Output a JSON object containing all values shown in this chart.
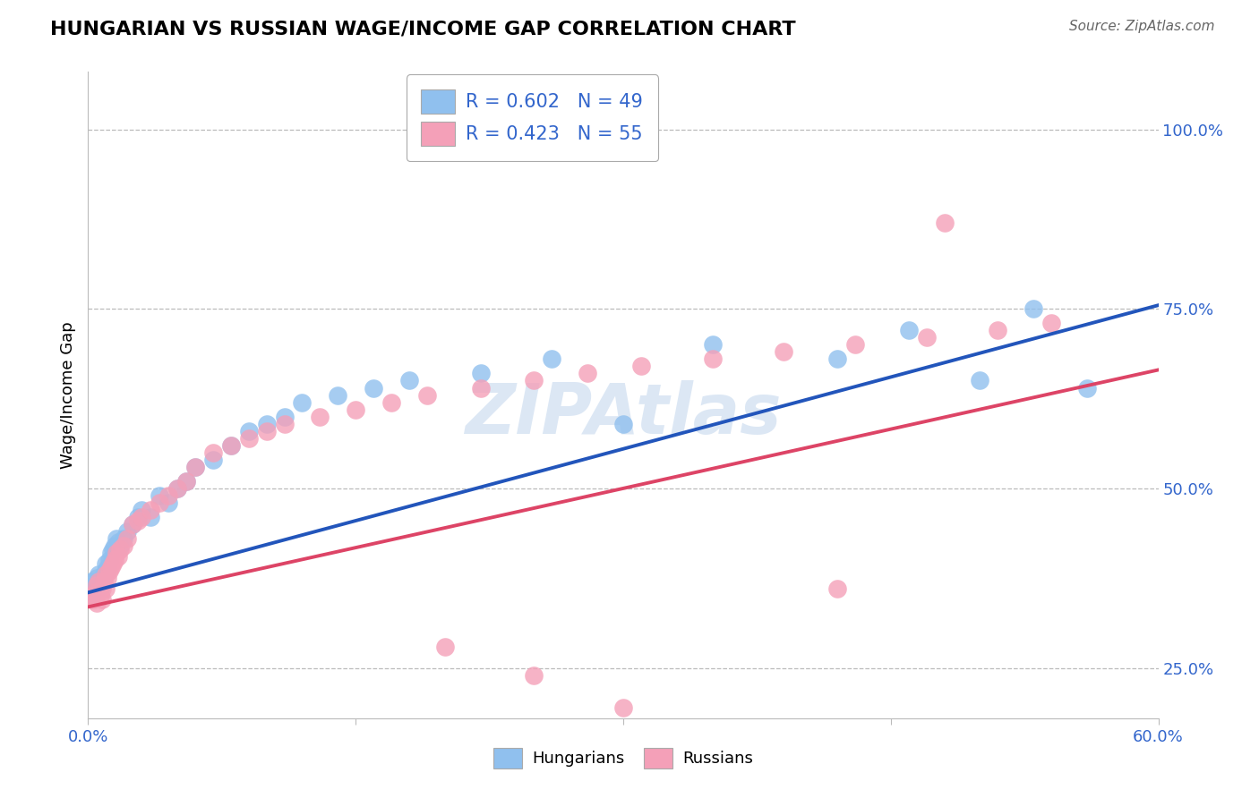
{
  "title": "HUNGARIAN VS RUSSIAN WAGE/INCOME GAP CORRELATION CHART",
  "source": "Source: ZipAtlas.com",
  "ylabel": "Wage/Income Gap",
  "xlim": [
    0.0,
    0.6
  ],
  "ylim": [
    0.18,
    1.08
  ],
  "xticks": [
    0.0,
    0.15,
    0.3,
    0.45,
    0.6
  ],
  "xtick_labels": [
    "0.0%",
    "",
    "",
    "",
    "60.0%"
  ],
  "yticks_right": [
    0.25,
    0.5,
    0.75,
    1.0
  ],
  "ytick_labels_right": [
    "25.0%",
    "50.0%",
    "75.0%",
    "100.0%"
  ],
  "hungarian_color": "#90C0EE",
  "russian_color": "#F4A0B8",
  "hungarian_line_color": "#2255BB",
  "russian_line_color": "#DD4466",
  "R_hungarian": 0.602,
  "N_hungarian": 49,
  "R_russian": 0.423,
  "N_russian": 55,
  "blue_line_x0": 0.0,
  "blue_line_y0": 0.355,
  "blue_line_x1": 0.6,
  "blue_line_y1": 0.755,
  "pink_line_x0": 0.0,
  "pink_line_y0": 0.335,
  "pink_line_x1": 0.6,
  "pink_line_y1": 0.665,
  "hungarian_x": [
    0.002,
    0.003,
    0.004,
    0.005,
    0.005,
    0.006,
    0.007,
    0.008,
    0.008,
    0.009,
    0.01,
    0.01,
    0.011,
    0.012,
    0.013,
    0.014,
    0.015,
    0.016,
    0.017,
    0.018,
    0.02,
    0.022,
    0.025,
    0.028,
    0.03,
    0.035,
    0.04,
    0.045,
    0.05,
    0.055,
    0.06,
    0.07,
    0.08,
    0.09,
    0.1,
    0.11,
    0.12,
    0.14,
    0.16,
    0.18,
    0.22,
    0.26,
    0.3,
    0.35,
    0.42,
    0.46,
    0.5,
    0.53,
    0.56
  ],
  "hungarian_y": [
    0.37,
    0.355,
    0.365,
    0.375,
    0.36,
    0.38,
    0.37,
    0.375,
    0.365,
    0.38,
    0.385,
    0.395,
    0.39,
    0.4,
    0.41,
    0.415,
    0.42,
    0.43,
    0.425,
    0.42,
    0.43,
    0.44,
    0.45,
    0.46,
    0.47,
    0.46,
    0.49,
    0.48,
    0.5,
    0.51,
    0.53,
    0.54,
    0.56,
    0.58,
    0.59,
    0.6,
    0.62,
    0.63,
    0.64,
    0.65,
    0.66,
    0.68,
    0.59,
    0.7,
    0.68,
    0.72,
    0.65,
    0.75,
    0.64
  ],
  "russian_x": [
    0.002,
    0.003,
    0.004,
    0.005,
    0.005,
    0.006,
    0.007,
    0.008,
    0.008,
    0.009,
    0.01,
    0.01,
    0.011,
    0.012,
    0.013,
    0.014,
    0.015,
    0.016,
    0.017,
    0.018,
    0.02,
    0.022,
    0.025,
    0.028,
    0.03,
    0.035,
    0.04,
    0.045,
    0.05,
    0.055,
    0.06,
    0.07,
    0.08,
    0.09,
    0.1,
    0.11,
    0.13,
    0.15,
    0.17,
    0.19,
    0.22,
    0.25,
    0.28,
    0.31,
    0.35,
    0.39,
    0.43,
    0.47,
    0.51,
    0.54,
    0.2,
    0.25,
    0.3,
    0.42,
    0.48
  ],
  "russian_y": [
    0.35,
    0.345,
    0.355,
    0.34,
    0.365,
    0.37,
    0.35,
    0.36,
    0.345,
    0.37,
    0.38,
    0.36,
    0.375,
    0.385,
    0.39,
    0.395,
    0.4,
    0.41,
    0.405,
    0.415,
    0.42,
    0.43,
    0.45,
    0.455,
    0.46,
    0.47,
    0.48,
    0.49,
    0.5,
    0.51,
    0.53,
    0.55,
    0.56,
    0.57,
    0.58,
    0.59,
    0.6,
    0.61,
    0.62,
    0.63,
    0.64,
    0.65,
    0.66,
    0.67,
    0.68,
    0.69,
    0.7,
    0.71,
    0.72,
    0.73,
    0.28,
    0.24,
    0.195,
    0.36,
    0.87
  ]
}
